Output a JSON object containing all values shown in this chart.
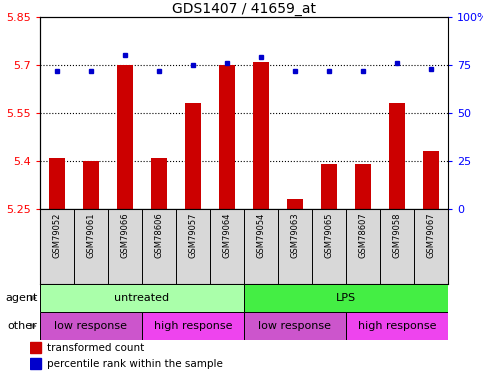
{
  "title": "GDS1407 / 41659_at",
  "samples": [
    "GSM79052",
    "GSM79061",
    "GSM79066",
    "GSM78606",
    "GSM79057",
    "GSM79064",
    "GSM79054",
    "GSM79063",
    "GSM79065",
    "GSM78607",
    "GSM79058",
    "GSM79067"
  ],
  "red_values": [
    5.41,
    5.4,
    5.7,
    5.41,
    5.58,
    5.7,
    5.71,
    5.28,
    5.39,
    5.39,
    5.58,
    5.43
  ],
  "blue_values": [
    72,
    72,
    80,
    72,
    75,
    76,
    79,
    72,
    72,
    72,
    76,
    73
  ],
  "y_min": 5.25,
  "y_max": 5.85,
  "y_ticks": [
    5.25,
    5.4,
    5.55,
    5.7,
    5.85
  ],
  "y_ticks_labels": [
    "5.25",
    "5.4",
    "5.55",
    "5.7",
    "5.85"
  ],
  "y2_ticks": [
    0,
    25,
    50,
    75,
    100
  ],
  "y2_ticks_labels": [
    "0",
    "25",
    "50",
    "75",
    "100%"
  ],
  "dotted_lines": [
    5.4,
    5.55,
    5.7
  ],
  "bar_color": "#cc0000",
  "dot_color": "#0000cc",
  "agent_row": [
    {
      "label": "untreated",
      "start": 0,
      "end": 6,
      "color": "#aaffaa"
    },
    {
      "label": "LPS",
      "start": 6,
      "end": 12,
      "color": "#44ee44"
    }
  ],
  "other_row": [
    {
      "label": "low response",
      "start": 0,
      "end": 3,
      "color": "#cc55cc"
    },
    {
      "label": "high response",
      "start": 3,
      "end": 6,
      "color": "#ee44ee"
    },
    {
      "label": "low response",
      "start": 6,
      "end": 9,
      "color": "#cc55cc"
    },
    {
      "label": "high response",
      "start": 9,
      "end": 12,
      "color": "#ee44ee"
    }
  ],
  "legend_items": [
    {
      "label": "transformed count",
      "color": "#cc0000"
    },
    {
      "label": "percentile rank within the sample",
      "color": "#0000cc"
    }
  ],
  "title_fontsize": 10,
  "tick_fontsize": 8,
  "bar_width": 0.45,
  "label_fontsize": 6,
  "row_fontsize": 8
}
